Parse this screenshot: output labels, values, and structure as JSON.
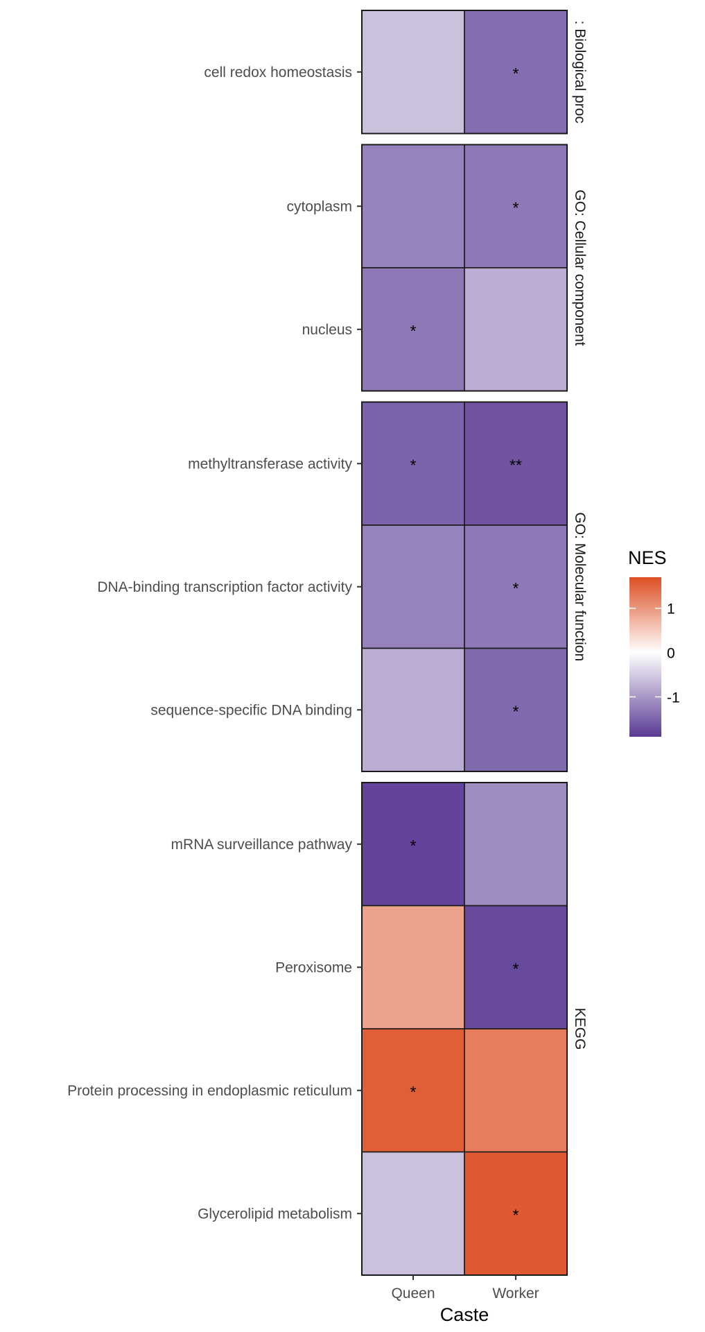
{
  "chart_data": {
    "type": "heatmap",
    "xlabel": "Caste",
    "ylabel": "",
    "columns": [
      "Queen",
      "Worker"
    ],
    "legend": {
      "title": "NES",
      "ticks": [
        "1",
        "0",
        "-1"
      ],
      "tick_values": [
        1,
        0,
        -1
      ],
      "range": [
        -1.9,
        1.7
      ],
      "low_color": "#5a3a94",
      "mid_color": "#ffffff",
      "high_color": "#dd4f24"
    },
    "panels": [
      {
        "label": ": Biological proc",
        "rows": [
          {
            "term": "cell redox homeostasis",
            "values": [
              -0.6,
              -1.4
            ],
            "stars": [
              "",
              "*"
            ]
          }
        ]
      },
      {
        "label": "GO: Cellular component",
        "rows": [
          {
            "term": "cytoplasm",
            "values": [
              -1.2,
              -1.3
            ],
            "stars": [
              "",
              "*"
            ]
          },
          {
            "term": "nucleus",
            "values": [
              -1.3,
              -0.8
            ],
            "stars": [
              "*",
              ""
            ]
          }
        ]
      },
      {
        "label": "GO: Molecular function",
        "rows": [
          {
            "term": "methyltransferase activity",
            "values": [
              -1.5,
              -1.65
            ],
            "stars": [
              "*",
              "**"
            ]
          },
          {
            "term": "DNA-binding transcription factor activity",
            "values": [
              -1.2,
              -1.3
            ],
            "stars": [
              "",
              "*"
            ]
          },
          {
            "term": "sequence-specific DNA binding",
            "values": [
              -0.8,
              -1.45
            ],
            "stars": [
              "",
              "*"
            ]
          }
        ]
      },
      {
        "label": "KEGG",
        "rows": [
          {
            "term": "mRNA surveillance pathway",
            "values": [
              -1.8,
              -1.1
            ],
            "stars": [
              "*",
              ""
            ]
          },
          {
            "term": "Peroxisome",
            "values": [
              0.9,
              -1.75
            ],
            "stars": [
              "",
              "*"
            ]
          },
          {
            "term": "Protein processing in endoplasmic reticulum",
            "values": [
              1.55,
              1.25
            ],
            "stars": [
              "*",
              ""
            ]
          },
          {
            "term": "Glycerolipid metabolism",
            "values": [
              -0.6,
              1.6
            ],
            "stars": [
              "",
              "*"
            ]
          }
        ]
      }
    ]
  }
}
